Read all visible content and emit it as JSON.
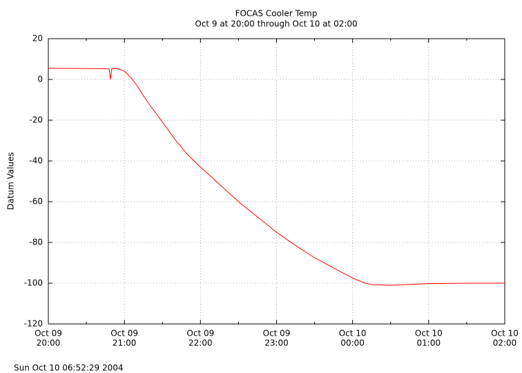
{
  "chart_data": {
    "type": "line",
    "title": "FOCAS Cooler Temp",
    "subtitle": "Oct 9 at 20:00 through Oct 10 at 02:00",
    "ylabel": "Datum Values",
    "xlim": [
      "Oct 09 20:00",
      "Oct 10 02:00"
    ],
    "ylim": [
      -120,
      20
    ],
    "yticks": [
      -120,
      -100,
      -80,
      -60,
      -40,
      -20,
      0,
      20
    ],
    "xticks": [
      {
        "value": "Oct 09 20:00",
        "label": [
          "Oct 09",
          "20:00"
        ]
      },
      {
        "value": "Oct 09 21:00",
        "label": [
          "Oct 09",
          "21:00"
        ]
      },
      {
        "value": "Oct 09 22:00",
        "label": [
          "Oct 09",
          "22:00"
        ]
      },
      {
        "value": "Oct 09 23:00",
        "label": [
          "Oct 09",
          "23:00"
        ]
      },
      {
        "value": "Oct 10 00:00",
        "label": [
          "Oct 10",
          "00:00"
        ]
      },
      {
        "value": "Oct 10 01:00",
        "label": [
          "Oct 10",
          "01:00"
        ]
      },
      {
        "value": "Oct 10 02:00",
        "label": [
          "Oct 10",
          "02:00"
        ]
      }
    ],
    "xminorticks": [
      "Oct 09 20:30",
      "Oct 09 21:30",
      "Oct 09 22:30",
      "Oct 09 23:30",
      "Oct 10 00:30",
      "Oct 10 01:30"
    ],
    "grid": true,
    "x": [
      "Oct 09 20:00",
      "Oct 09 20:40",
      "Oct 09 20:47",
      "Oct 09 20:48",
      "Oct 09 20:49",
      "Oct 09 20:50",
      "Oct 09 20:55",
      "Oct 09 21:00",
      "Oct 09 21:05",
      "Oct 09 21:10",
      "Oct 09 21:15",
      "Oct 09 21:20",
      "Oct 09 21:30",
      "Oct 09 21:40",
      "Oct 09 21:50",
      "Oct 09 22:00",
      "Oct 09 22:15",
      "Oct 09 22:30",
      "Oct 09 22:45",
      "Oct 09 23:00",
      "Oct 09 23:15",
      "Oct 09 23:30",
      "Oct 09 23:45",
      "Oct 10 00:00",
      "Oct 10 00:10",
      "Oct 10 00:15",
      "Oct 10 00:30",
      "Oct 10 00:45",
      "Oct 10 01:00",
      "Oct 10 01:30",
      "Oct 10 02:00"
    ],
    "series": [
      {
        "color": "#ff0000",
        "values": [
          5.5,
          5.3,
          5.2,
          5,
          0,
          5.2,
          5.3,
          4,
          1,
          -3,
          -8,
          -12.5,
          -21,
          -29.5,
          -37,
          -43,
          -51.5,
          -60,
          -67.5,
          -75,
          -81.5,
          -87.5,
          -92.5,
          -97.5,
          -100,
          -100.7,
          -101,
          -100.6,
          -100.2,
          -100,
          -100
        ]
      }
    ]
  },
  "footer": "Sun Oct 10 06:52:29 2004"
}
